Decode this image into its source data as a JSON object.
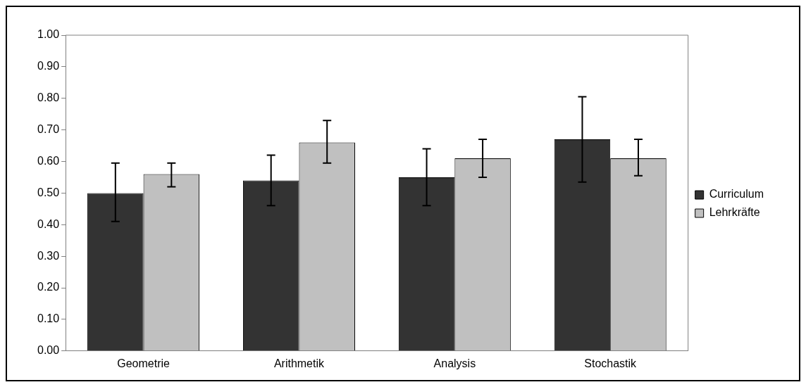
{
  "chart_data": {
    "type": "bar",
    "categories": [
      "Geometrie",
      "Arithmetik",
      "Analysis",
      "Stochastik"
    ],
    "series": [
      {
        "name": "Curriculum",
        "color": "#333333",
        "values": [
          0.5,
          0.54,
          0.55,
          0.67
        ],
        "errors": [
          [
            0.41,
            0.595
          ],
          [
            0.46,
            0.62
          ],
          [
            0.46,
            0.64
          ],
          [
            0.535,
            0.805
          ]
        ]
      },
      {
        "name": "Lehrkräfte",
        "color": "#c0c0c0",
        "values": [
          0.56,
          0.66,
          0.61,
          0.61
        ],
        "errors": [
          [
            0.52,
            0.595
          ],
          [
            0.595,
            0.73
          ],
          [
            0.55,
            0.67
          ],
          [
            0.555,
            0.67
          ]
        ]
      }
    ],
    "ylim": [
      0,
      1
    ],
    "yticks": [
      {
        "value": 0,
        "label": "0.00"
      },
      {
        "value": 0.1,
        "label": "0.10"
      },
      {
        "value": 0.2,
        "label": "0.20"
      },
      {
        "value": 0.3,
        "label": "0.30"
      },
      {
        "value": 0.4,
        "label": "0.40"
      },
      {
        "value": 0.5,
        "label": "0.50"
      },
      {
        "value": 0.6,
        "label": "0.60"
      },
      {
        "value": 0.7,
        "label": "0.70"
      },
      {
        "value": 0.8,
        "label": "0.80"
      },
      {
        "value": 0.9,
        "label": "0.90"
      },
      {
        "value": 1,
        "label": "1.00"
      }
    ],
    "grid": false,
    "legend": "right"
  }
}
